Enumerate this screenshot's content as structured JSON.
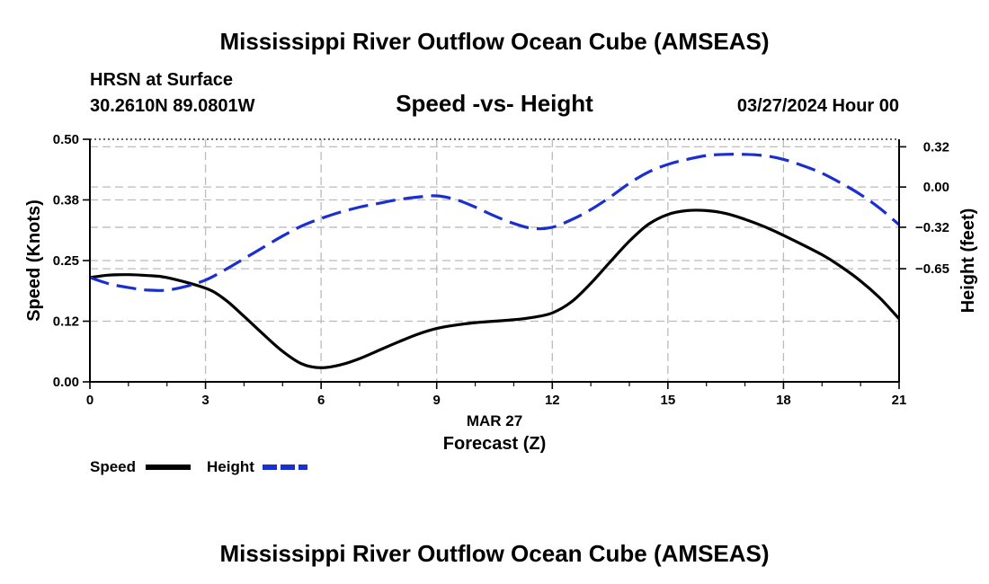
{
  "header": {
    "title": "Mississippi River Outflow Ocean Cube (AMSEAS)",
    "location_label": "HRSN at Surface",
    "coordinates": "30.2610N  89.0801W",
    "plot_title": "Speed -vs- Height",
    "datetime": "03/27/2024 Hour 00",
    "footer_title": "Mississippi River Outflow Ocean Cube (AMSEAS)"
  },
  "chart_data": {
    "type": "line",
    "title": "Speed -vs- Height",
    "xlabel": "Forecast (Z)",
    "xdate_label": "MAR 27",
    "ylabel_left": "Speed (Knots)",
    "ylabel_right": "Height (feet)",
    "xlim": [
      0,
      21
    ],
    "ylim_left": [
      0,
      0.5
    ],
    "ylim_right": [
      -1.55,
      0.38
    ],
    "x_ticks": [
      0,
      3,
      6,
      9,
      12,
      15,
      18,
      21
    ],
    "x_tick_labels": [
      "0",
      "3",
      "6",
      "9",
      "12",
      "15",
      "18",
      "21"
    ],
    "y_left_ticks": [
      0,
      0.125,
      0.25,
      0.375,
      0.5
    ],
    "y_left_tick_labels": [
      "0.00",
      "0.12",
      "0.25",
      "0.38",
      "0.50"
    ],
    "y_right_ticks": [
      -0.65,
      -0.32,
      0.0,
      0.32
    ],
    "y_right_tick_labels": [
      "−0.65",
      "−0.32",
      "0.00",
      "0.32"
    ],
    "x_minor_ticks": [
      1,
      2,
      4,
      5,
      7,
      8,
      10,
      11,
      13,
      14,
      16,
      17,
      19,
      20
    ],
    "grid": true,
    "series": [
      {
        "name": "Speed",
        "axis": "left",
        "color": "#000000",
        "style": "solid",
        "x": [
          0,
          0.5,
          1,
          1.5,
          2,
          3,
          3.5,
          4,
          4.5,
          5,
          5.5,
          6,
          6.5,
          7,
          7.5,
          8,
          8.5,
          9,
          9.5,
          10,
          11,
          11.5,
          12,
          12.5,
          13,
          13.5,
          14,
          14.5,
          15,
          15.5,
          16,
          16.5,
          17,
          17.5,
          18,
          19,
          19.5,
          20,
          20.5,
          21
        ],
        "values": [
          0.215,
          0.22,
          0.221,
          0.219,
          0.215,
          0.193,
          0.17,
          0.135,
          0.098,
          0.063,
          0.037,
          0.029,
          0.035,
          0.048,
          0.065,
          0.082,
          0.098,
          0.11,
          0.117,
          0.122,
          0.128,
          0.133,
          0.142,
          0.165,
          0.203,
          0.247,
          0.29,
          0.325,
          0.345,
          0.353,
          0.353,
          0.347,
          0.335,
          0.32,
          0.302,
          0.262,
          0.237,
          0.208,
          0.173,
          0.13
        ]
      },
      {
        "name": "Height",
        "axis": "right",
        "color": "#1a2fcf",
        "style": "dashed",
        "x": [
          0,
          0.5,
          1,
          1.5,
          2,
          2.5,
          3,
          3.5,
          4,
          4.5,
          5,
          5.5,
          6,
          6.5,
          7,
          7.5,
          8,
          8.5,
          9,
          9.5,
          10,
          10.5,
          11,
          11.5,
          12,
          12.5,
          13,
          13.5,
          14,
          14.5,
          15,
          15.5,
          16,
          16.5,
          17,
          17.5,
          18,
          18.5,
          19,
          19.5,
          20,
          20.5,
          21
        ],
        "values": [
          -0.72,
          -0.77,
          -0.8,
          -0.82,
          -0.82,
          -0.79,
          -0.74,
          -0.66,
          -0.57,
          -0.48,
          -0.39,
          -0.31,
          -0.25,
          -0.2,
          -0.16,
          -0.13,
          -0.1,
          -0.08,
          -0.07,
          -0.1,
          -0.16,
          -0.23,
          -0.29,
          -0.33,
          -0.32,
          -0.26,
          -0.18,
          -0.08,
          0.03,
          0.12,
          0.18,
          0.22,
          0.25,
          0.26,
          0.26,
          0.25,
          0.22,
          0.17,
          0.11,
          0.03,
          -0.06,
          -0.17,
          -0.3
        ]
      }
    ],
    "reference_lines": [
      {
        "axis": "left",
        "value": 0.5
      },
      {
        "axis": "left",
        "value": 0.0
      }
    ],
    "legend": [
      "Speed",
      "Height"
    ]
  }
}
